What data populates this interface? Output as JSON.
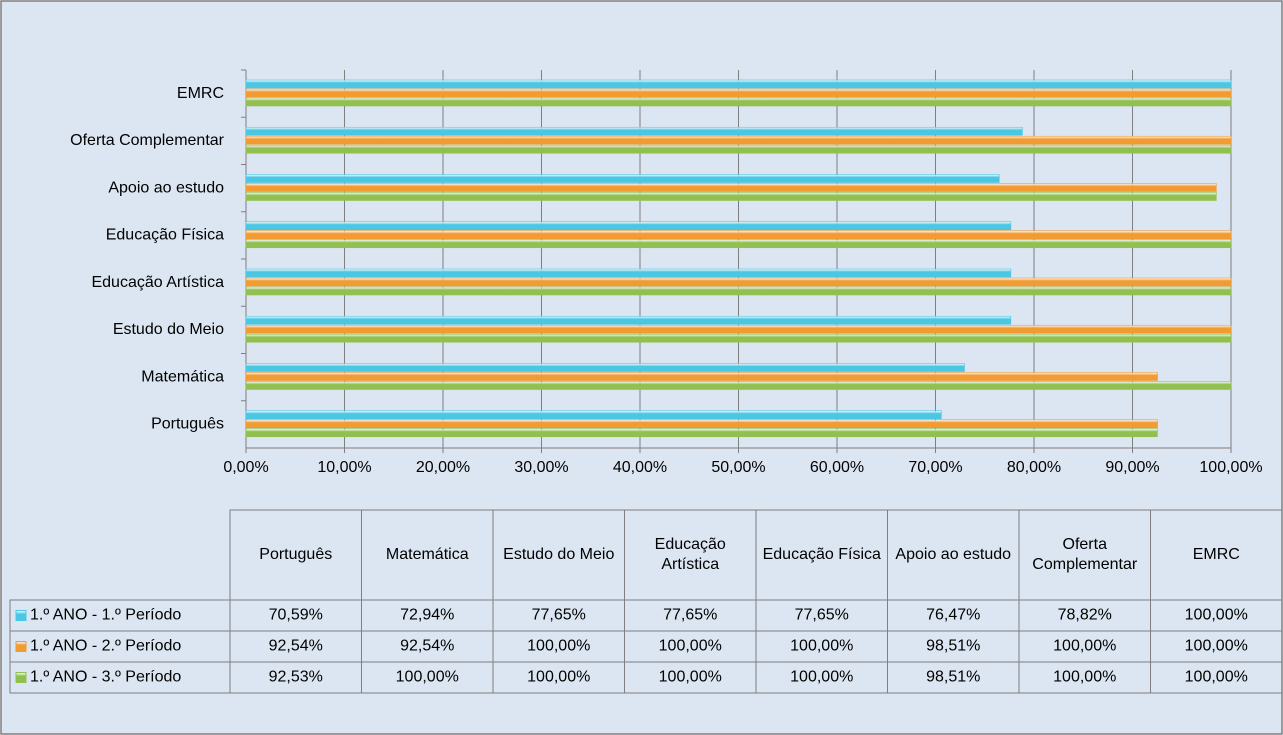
{
  "chart_data": {
    "type": "bar",
    "orientation": "horizontal",
    "categories": [
      "Português",
      "Matemática",
      "Estudo do Meio",
      "Educação Artística",
      "Educação Física",
      "Apoio ao estudo",
      "Oferta Complementar",
      "EMRC"
    ],
    "series": [
      {
        "name": "1.º ANO - 1.º Período",
        "color": "#4bc6e3",
        "values": [
          70.59,
          72.94,
          77.65,
          77.65,
          77.65,
          76.47,
          78.82,
          100
        ],
        "value_labels": [
          "70,59%",
          "72,94%",
          "77,65%",
          "77,65%",
          "77,65%",
          "76,47%",
          "78,82%",
          "100,00%"
        ]
      },
      {
        "name": "1.º ANO - 2.º Período",
        "color": "#f29b32",
        "values": [
          92.54,
          92.54,
          100,
          100,
          100,
          98.51,
          100,
          100
        ],
        "value_labels": [
          "92,54%",
          "92,54%",
          "100,00%",
          "100,00%",
          "100,00%",
          "98,51%",
          "100,00%",
          "100,00%"
        ]
      },
      {
        "name": "1.º ANO - 3.º Período",
        "color": "#92c050",
        "values": [
          92.53,
          100,
          100,
          100,
          100,
          98.51,
          100,
          100
        ],
        "value_labels": [
          "92,53%",
          "100,00%",
          "100,00%",
          "100,00%",
          "100,00%",
          "98,51%",
          "100,00%",
          "100,00%"
        ]
      }
    ],
    "xlim": [
      0,
      100
    ],
    "xticks": [
      {
        "value": 0,
        "label": "0,00%"
      },
      {
        "value": 10,
        "label": "10,00%"
      },
      {
        "value": 20,
        "label": "20,00%"
      },
      {
        "value": 30,
        "label": "30,00%"
      },
      {
        "value": 40,
        "label": "40,00%"
      },
      {
        "value": 50,
        "label": "50,00%"
      },
      {
        "value": 60,
        "label": "60,00%"
      },
      {
        "value": 70,
        "label": "70,00%"
      },
      {
        "value": 80,
        "label": "80,00%"
      },
      {
        "value": 90,
        "label": "90,00%"
      },
      {
        "value": 100,
        "label": "100,00%"
      }
    ],
    "grid": true,
    "data_table": true
  }
}
